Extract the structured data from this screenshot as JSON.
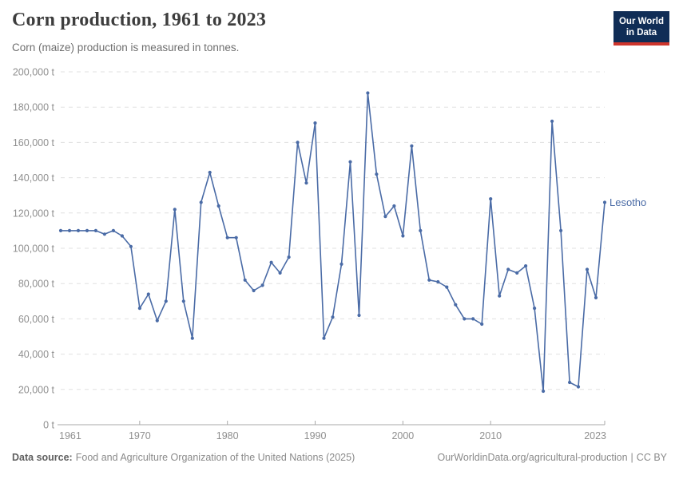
{
  "header": {
    "title": "Corn production, 1961 to 2023",
    "subtitle": "Corn (maize) production is measured in tonnes.",
    "logo": {
      "line1": "Our World",
      "line2": "in Data"
    }
  },
  "chart_data": {
    "type": "line",
    "title": "Corn production, 1961 to 2023",
    "unit": "tonnes",
    "xlabel": "",
    "ylabel": "",
    "xlim": [
      1961,
      2023
    ],
    "ylim": [
      0,
      200000
    ],
    "grid": "dashed-horizontal",
    "legend_position": "end-of-line-label",
    "x_ticks": [
      1961,
      1970,
      1980,
      1990,
      2000,
      2010,
      2023
    ],
    "x_tick_labels": [
      "1961",
      "1970",
      "1980",
      "1990",
      "2000",
      "2010",
      "2023"
    ],
    "y_ticks": [
      0,
      20000,
      40000,
      60000,
      80000,
      100000,
      120000,
      140000,
      160000,
      180000,
      200000
    ],
    "y_tick_labels": [
      "0 t",
      "20,000 t",
      "40,000 t",
      "60,000 t",
      "80,000 t",
      "100,000 t",
      "120,000 t",
      "140,000 t",
      "160,000 t",
      "180,000 t",
      "200,000 t"
    ],
    "x": [
      1961,
      1962,
      1963,
      1964,
      1965,
      1966,
      1967,
      1968,
      1969,
      1970,
      1971,
      1972,
      1973,
      1974,
      1975,
      1976,
      1977,
      1978,
      1979,
      1980,
      1981,
      1982,
      1983,
      1984,
      1985,
      1986,
      1987,
      1988,
      1989,
      1990,
      1991,
      1992,
      1993,
      1994,
      1995,
      1996,
      1997,
      1998,
      1999,
      2000,
      2001,
      2002,
      2003,
      2004,
      2005,
      2006,
      2007,
      2008,
      2009,
      2010,
      2011,
      2012,
      2013,
      2014,
      2015,
      2016,
      2017,
      2018,
      2019,
      2020,
      2021,
      2022,
      2023
    ],
    "series": [
      {
        "name": "Lesotho",
        "color": "#4a6ba6",
        "values": [
          110000,
          110000,
          110000,
          110000,
          110000,
          108000,
          110000,
          107000,
          101000,
          66000,
          74000,
          59000,
          70000,
          122000,
          70000,
          49000,
          126000,
          143000,
          124000,
          106000,
          106000,
          82000,
          76000,
          79000,
          92000,
          86000,
          95000,
          160000,
          137000,
          171000,
          49000,
          61000,
          91000,
          149000,
          62000,
          188000,
          142000,
          118000,
          124000,
          107000,
          158000,
          110000,
          82000,
          81000,
          78000,
          68000,
          60000,
          60000,
          57000,
          128000,
          73000,
          88000,
          86000,
          90000,
          66000,
          19000,
          172000,
          110000,
          24000,
          21500,
          88000,
          72000,
          126000
        ]
      }
    ]
  },
  "footer": {
    "source_label": "Data source:",
    "source": "Food and Agriculture Organization of the United Nations (2025)",
    "url_text": "OurWorldinData.org/agricultural-production",
    "divider": "|",
    "license": "CC BY"
  },
  "colors": {
    "series": "#4a6ba6",
    "gridline": "#e0e0e0",
    "axis": "#a8a8a8",
    "tick_text": "#8f8f8f",
    "title_text": "#3d3d3d",
    "subtitle_text": "#6e6e6e",
    "logo_bg": "#102d56",
    "logo_stripe": "#ce352c"
  }
}
